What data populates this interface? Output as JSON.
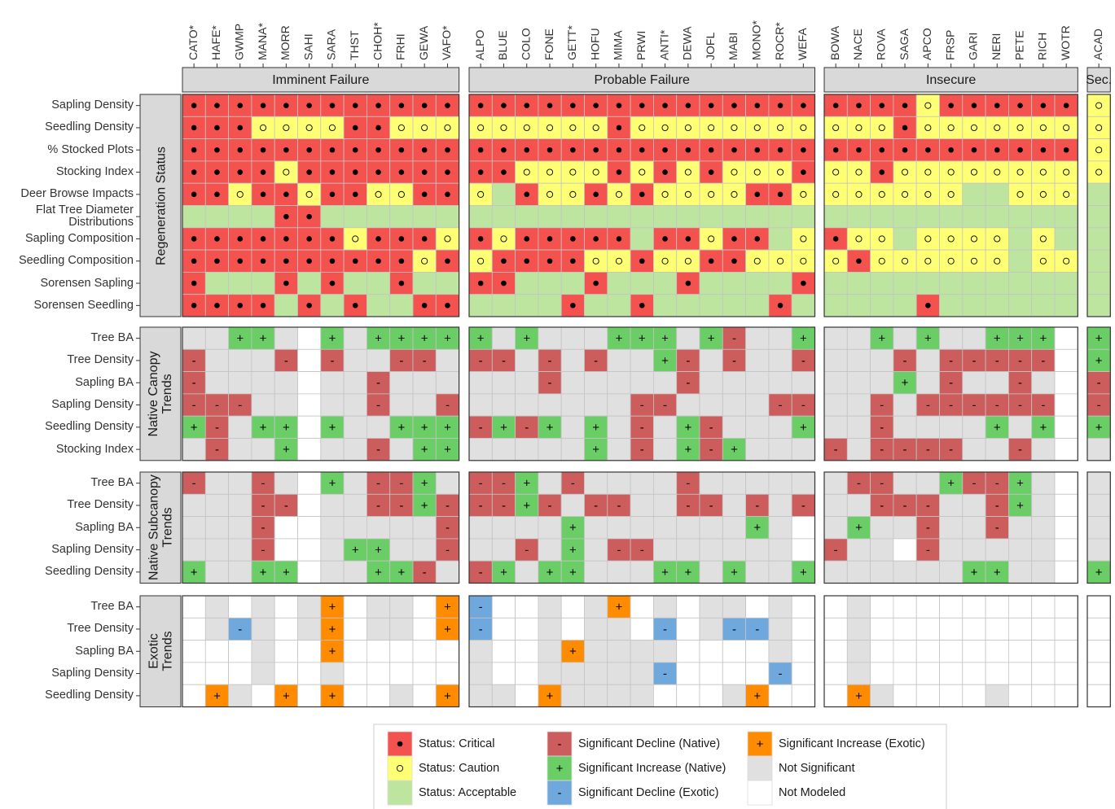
{
  "column_groups": [
    {
      "label": "Imminent Failure",
      "columns": [
        "CATO*",
        "HAFE*",
        "GWMP",
        "MANA*",
        "MORR",
        "SAHI",
        "SARA",
        "THST",
        "CHOH*",
        "FRHI",
        "GEWA",
        "VAFO*"
      ]
    },
    {
      "label": "Probable Failure",
      "columns": [
        "ALPO",
        "BLUE",
        "COLO",
        "FONE",
        "GETT*",
        "HOFU",
        "MIMA",
        "PRWI",
        "ANTI*",
        "DEWA",
        "JOFL",
        "MABI",
        "MONO*",
        "ROCR*",
        "WEFA"
      ]
    },
    {
      "label": "Insecure",
      "columns": [
        "BOWA",
        "NACE",
        "ROVA",
        "SAGA",
        "APCO",
        "FRSP",
        "GARI",
        "NERI",
        "PETE",
        "RICH",
        "WOTR"
      ]
    },
    {
      "label": "Sec.",
      "columns": [
        "ACAD"
      ]
    }
  ],
  "row_groups": [
    {
      "label": "Regeneration Status",
      "rows": [
        {
          "label": "Sapling Density",
          "cells": [
            "CCCCCCCCCCCC",
            "CCCCCCCCCCCCCCC",
            "CCCCWCCCCCC",
            "W"
          ]
        },
        {
          "label": "Seedling Density",
          "cells": [
            "CCCWWWWCCWWW",
            "WWWWWWCWWWWWWWW",
            "WWWCWWWWWWW",
            "W"
          ]
        },
        {
          "label": "% Stocked Plots",
          "cells": [
            "CCCCCCCCCCCC",
            "CCCCCCCCCCCCCCC",
            "CCCCCCCCCCC",
            "W"
          ]
        },
        {
          "label": "Stocking Index",
          "cells": [
            "CCCCWCCCCCCC",
            "CCWWWWCWCWCWWWC",
            "WWCWWWWWWWW",
            "W"
          ]
        },
        {
          "label": "Deer Browse Impacts",
          "cells": [
            "CCWCCWCCWWCC",
            "WACWWCWCWWWWCCW",
            "WWWWWWAAWWW",
            "A"
          ]
        },
        {
          "label": "Flat Tree Diameter\nDistributions",
          "cells": [
            "AAAACCAAAAAA",
            "AAAAAAAAAAAAAAA",
            "AAAAAAAAAAA",
            "A"
          ]
        },
        {
          "label": "Sapling Composition",
          "cells": [
            "CCCCCCCWCCCW",
            "CWCCCCCACCWCCAW",
            "CWWAWWWWAWA",
            "A"
          ]
        },
        {
          "label": "Seedling Composition",
          "cells": [
            "CCCCCCCCCCWC",
            "WCCCCWWCWWCCWWW",
            "WCWWWWWWAWW",
            "A"
          ]
        },
        {
          "label": "Sorensen Sapling",
          "cells": [
            "CAAACACAACAA",
            "CCAAACAAACAAAAC",
            "AAAAAAAAAAA",
            "A"
          ]
        },
        {
          "label": "Sorensen Seedling",
          "cells": [
            "CCCCACACAACC",
            "AAAACAACAAAAACA",
            "AAAACAAAAAA",
            "A"
          ]
        }
      ]
    },
    {
      "label": "Native Canopy\nTrends",
      "rows": [
        {
          "label": "Tree BA",
          "cells": [
            "NNIINMINIIII",
            "ININNNIIINIDNNI",
            "NNININNIIIM",
            "I"
          ]
        },
        {
          "label": "Tree Density",
          "cells": [
            "DNNNDMDNNDDN",
            "DDNDNDNNIDNDNND",
            "NNNDNDDDDDM",
            "I"
          ]
        },
        {
          "label": "Sapling BA",
          "cells": [
            "DNNNNMNNDNNN",
            "NNNDNNNNNDNNNNN",
            "NNNINDNNDNM",
            "D"
          ]
        },
        {
          "label": "Sapling Density",
          "cells": [
            "DDDNNMNNDNND",
            "NNNNNNNDDNNNNDD",
            "NNDNDDDDDDM",
            "D"
          ]
        },
        {
          "label": "Seedling Density",
          "cells": [
            "IDNIIMINNIII",
            "DIDININDNIDNNNI",
            "NNDNNNNINIM",
            "I"
          ]
        },
        {
          "label": "Stocking Index",
          "cells": [
            "NDNNIMNNDNII",
            "NNNNNINDNIDINNN",
            "DNDDDDNNDNM",
            "N"
          ]
        }
      ]
    },
    {
      "label": "Native Subcanopy\nTrends",
      "rows": [
        {
          "label": "Tree BA",
          "cells": [
            "DNNDNMINDDIN",
            "DDINDNNNNDNNNNN",
            "NDDNNIDDINM",
            "N"
          ]
        },
        {
          "label": "Tree Density",
          "cells": [
            "NNNDDMNNDDID",
            "DDIDNDDNNDDNDND",
            "NNDDDNNDINM",
            "N"
          ]
        },
        {
          "label": "Sapling BA",
          "cells": [
            "NNNDMMNNNNND",
            "NNNNINNNNNNNINM",
            "NINNDNNDNNM",
            "N"
          ]
        },
        {
          "label": "Sapling Density",
          "cells": [
            "NNNDMMNIINND",
            "NNDNINDDNNNNNNM",
            "DNNMDNNNNNM",
            "N"
          ]
        },
        {
          "label": "Seedling Density",
          "cells": [
            "INNIIMNNIIDN",
            "DINIINNNIININNI",
            "NNNNNNIINNM",
            "I"
          ]
        }
      ]
    },
    {
      "label": "Exotic\nTrends",
      "rows": [
        {
          "label": "Tree BA",
          "cells": [
            "MNMNMNXMNNMX",
            "EMMNMNXMNMNNMNM",
            "MNMMMMMMMMM",
            "M"
          ]
        },
        {
          "label": "Tree Density",
          "cells": [
            "MNENMNXMNNMX",
            "EMMNMNNMEMNEENM",
            "MNMMMMMMMMM",
            "M"
          ]
        },
        {
          "label": "Sapling BA",
          "cells": [
            "MMMNMMXMMMMM",
            "NMMNXNNNNMMMMNM",
            "MNMMMMMMMMM",
            "M"
          ]
        },
        {
          "label": "Sapling Density",
          "cells": [
            "MMMNMMNMMMMM",
            "NMMNNNNNEMMMMEM",
            "MNMMMMMMMMM",
            "M"
          ]
        },
        {
          "label": "Seedling Density",
          "cells": [
            "MXNMXMXMMNMX",
            "NNMXNNNNMMMNXMM",
            "MXNMMMMNMMM",
            "M"
          ]
        }
      ]
    }
  ],
  "legend": [
    {
      "code": "C",
      "label": "Status: Critical",
      "color": "#f4524f",
      "marker": "dot"
    },
    {
      "code": "W",
      "label": "Status: Caution",
      "color": "#ffff73",
      "marker": "ring"
    },
    {
      "code": "A",
      "label": "Status: Acceptable",
      "color": "#bde5a0"
    },
    {
      "code": "D",
      "label": "Significant Decline (Native)",
      "color": "#cd5c5c",
      "symbol": "-"
    },
    {
      "code": "I",
      "label": "Significant Increase (Native)",
      "color": "#6acd66",
      "symbol": "+"
    },
    {
      "code": "E",
      "label": "Significant Decline (Exotic)",
      "color": "#6fa8dc",
      "symbol": "-"
    },
    {
      "code": "X",
      "label": "Significant Increase (Exotic)",
      "color": "#ff8c00",
      "symbol": "+"
    },
    {
      "code": "N",
      "label": "Not Significant",
      "color": "#e0e0e0"
    },
    {
      "code": "M",
      "label": "Not Modeled",
      "color": "#ffffff"
    }
  ]
}
